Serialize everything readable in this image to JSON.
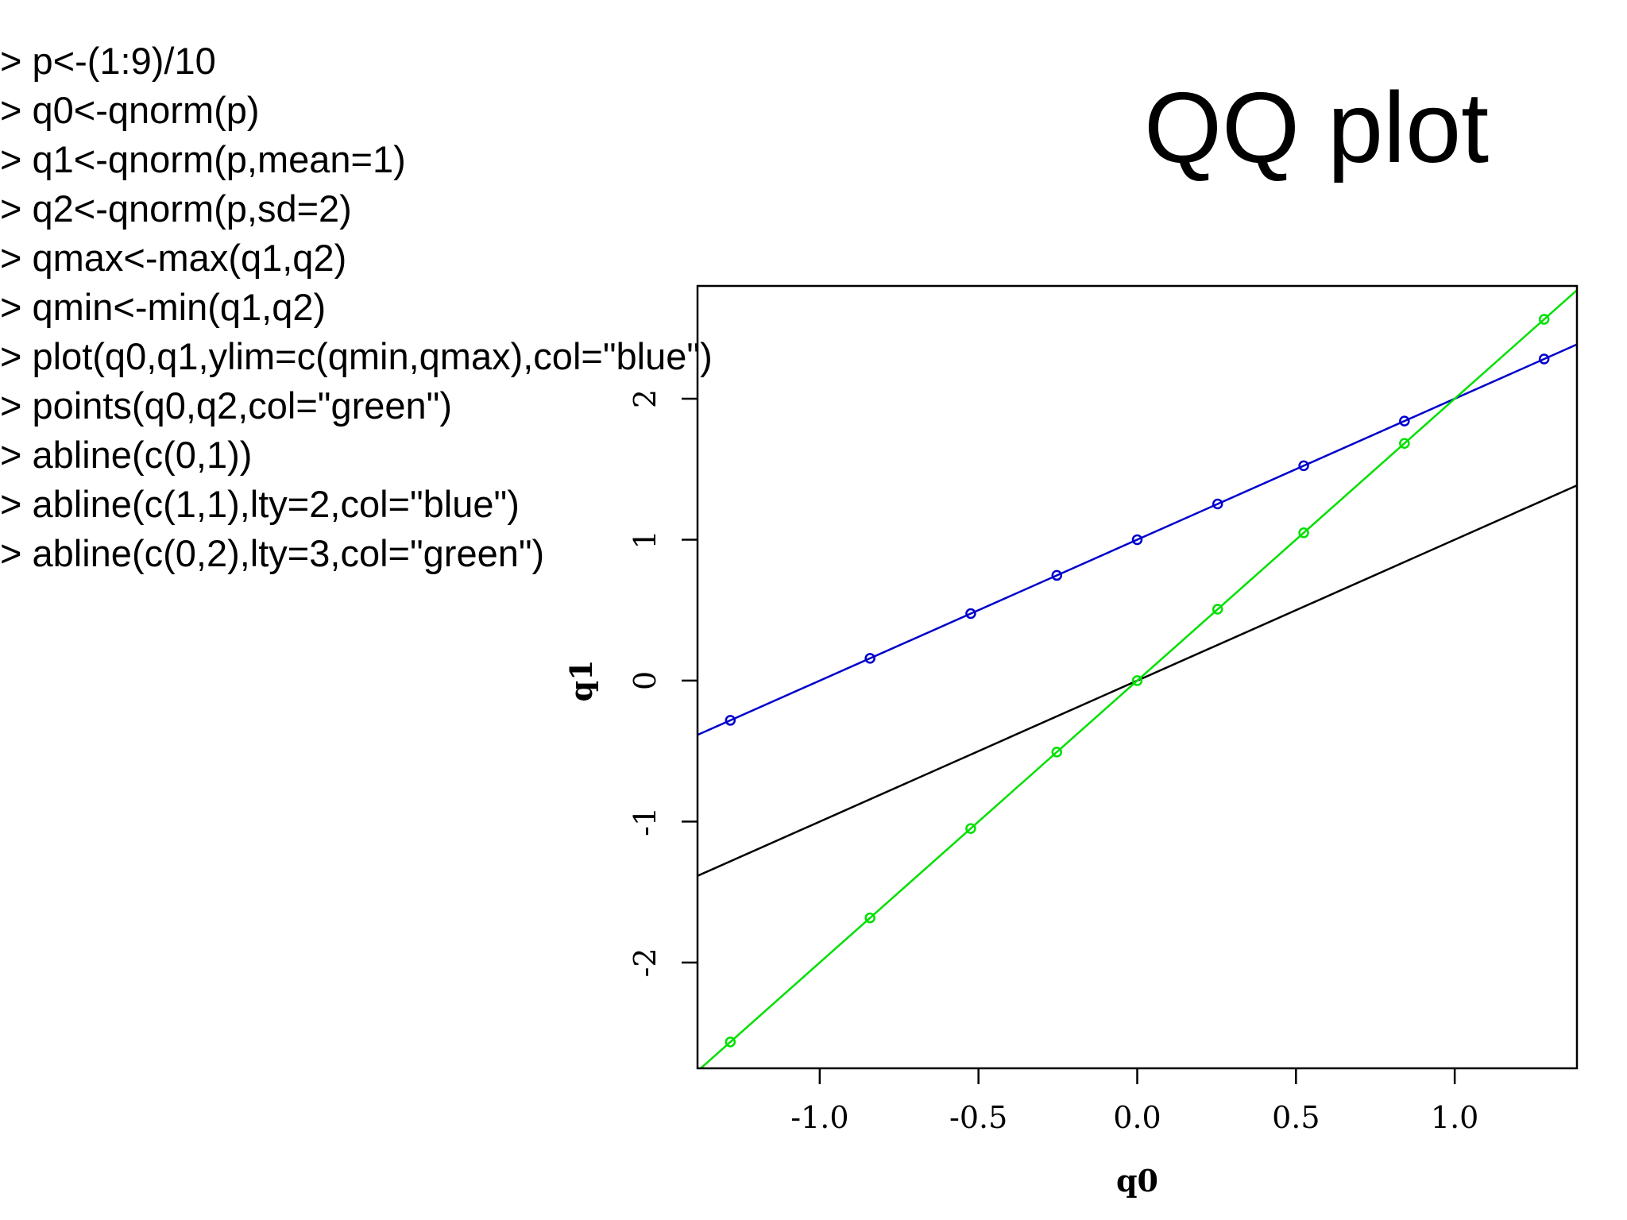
{
  "slide_title": "QQ plot",
  "code_lines": [
    "> p<-(1:9)/10",
    "> q0<-qnorm(p)",
    "> q1<-qnorm(p,mean=1)",
    "> q2<-qnorm(p,sd=2)",
    "> qmax<-max(q1,q2)",
    "> qmin<-min(q1,q2)",
    "> plot(q0,q1,ylim=c(qmin,qmax),col=\"blue\")",
    "> points(q0,q2,col=\"green\")",
    "> abline(c(0,1))",
    "> abline(c(1,1),lty=2,col=\"blue\")",
    "> abline(c(0,2),lty=3,col=\"green\")"
  ],
  "chart_data": {
    "type": "scatter",
    "xlabel": "q0",
    "ylabel": "q1",
    "xlim": [
      -1.385,
      1.385
    ],
    "ylim": [
      -2.75,
      2.8
    ],
    "x_ticks": [
      -1.0,
      -0.5,
      0.0,
      0.5,
      1.0
    ],
    "x_tick_labels": [
      "-1.0",
      "-0.5",
      "0.0",
      "0.5",
      "1.0"
    ],
    "y_ticks": [
      -2,
      -1,
      0,
      1,
      2
    ],
    "y_tick_labels": [
      "-2",
      "-1",
      "0",
      "1",
      "2"
    ],
    "x": [
      -1.2816,
      -0.8416,
      -0.5244,
      -0.2533,
      0.0,
      0.2533,
      0.5244,
      0.8416,
      1.2816
    ],
    "series": [
      {
        "values": [
          -0.2816,
          0.1584,
          0.4756,
          0.7467,
          1.0,
          1.2533,
          1.5244,
          1.8416,
          2.2816
        ],
        "color": "#0000cc",
        "marker": "circle"
      },
      {
        "values": [
          -2.5631,
          -1.6832,
          -1.0488,
          -0.5067,
          0.0,
          0.5067,
          1.0488,
          1.6832,
          2.5631
        ],
        "color": "#00e000",
        "marker": "circle"
      }
    ],
    "lines": [
      {
        "intercept": 0,
        "slope": 1,
        "color": "#000000"
      },
      {
        "intercept": 1,
        "slope": 1,
        "color": "#0000cc"
      },
      {
        "intercept": 0,
        "slope": 2,
        "color": "#00e000"
      }
    ],
    "grid": false
  }
}
